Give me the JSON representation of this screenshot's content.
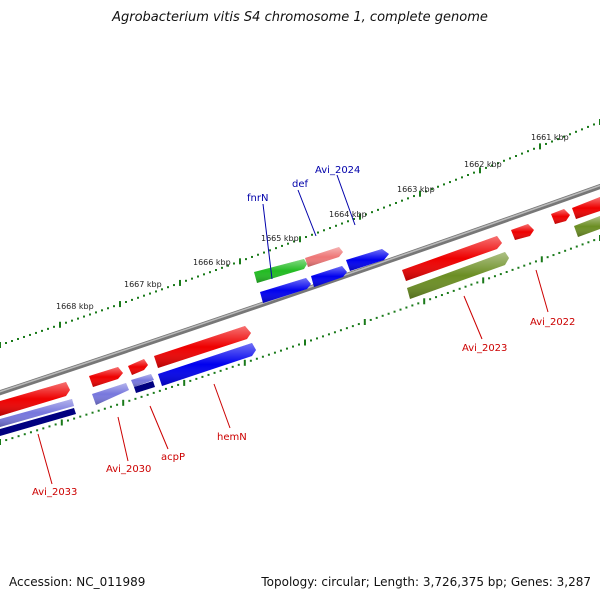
{
  "title": "Agrobacterium vitis S4 chromosome 1, complete genome",
  "accession_text": "Accession: NC_011989",
  "topology_text": "Topology: circular; Length: 3,726,375 bp; Genes: 3,287",
  "colors": {
    "backbone": "#888888",
    "tick": "#1a7a1a",
    "label_red": "#cc0000",
    "label_blue": "#0000aa",
    "cds_red": "#ee0000",
    "cds_blue": "#0000ee",
    "cds_green": "#22bb22",
    "cds_olive": "#6b8e23",
    "cds_salmon": "#ee7777",
    "cds_lavender": "#7777dd",
    "cds_navy": "#000080"
  },
  "kbp_labels": [
    "1661 kbp",
    "1662 kbp",
    "1663 kbp",
    "1664 kbp",
    "1665 kbp",
    "1666 kbp",
    "1667 kbp",
    "1668 kbp"
  ],
  "gene_labels": {
    "fnrN": "fnrN",
    "def": "def",
    "avi_2024": "Avi_2024",
    "avi_2023": "Avi_2023",
    "avi_2022": "Avi_2022",
    "hemN": "hemN",
    "acpP": "acpP",
    "avi_2030": "Avi_2030",
    "avi_2033": "Avi_2033"
  }
}
